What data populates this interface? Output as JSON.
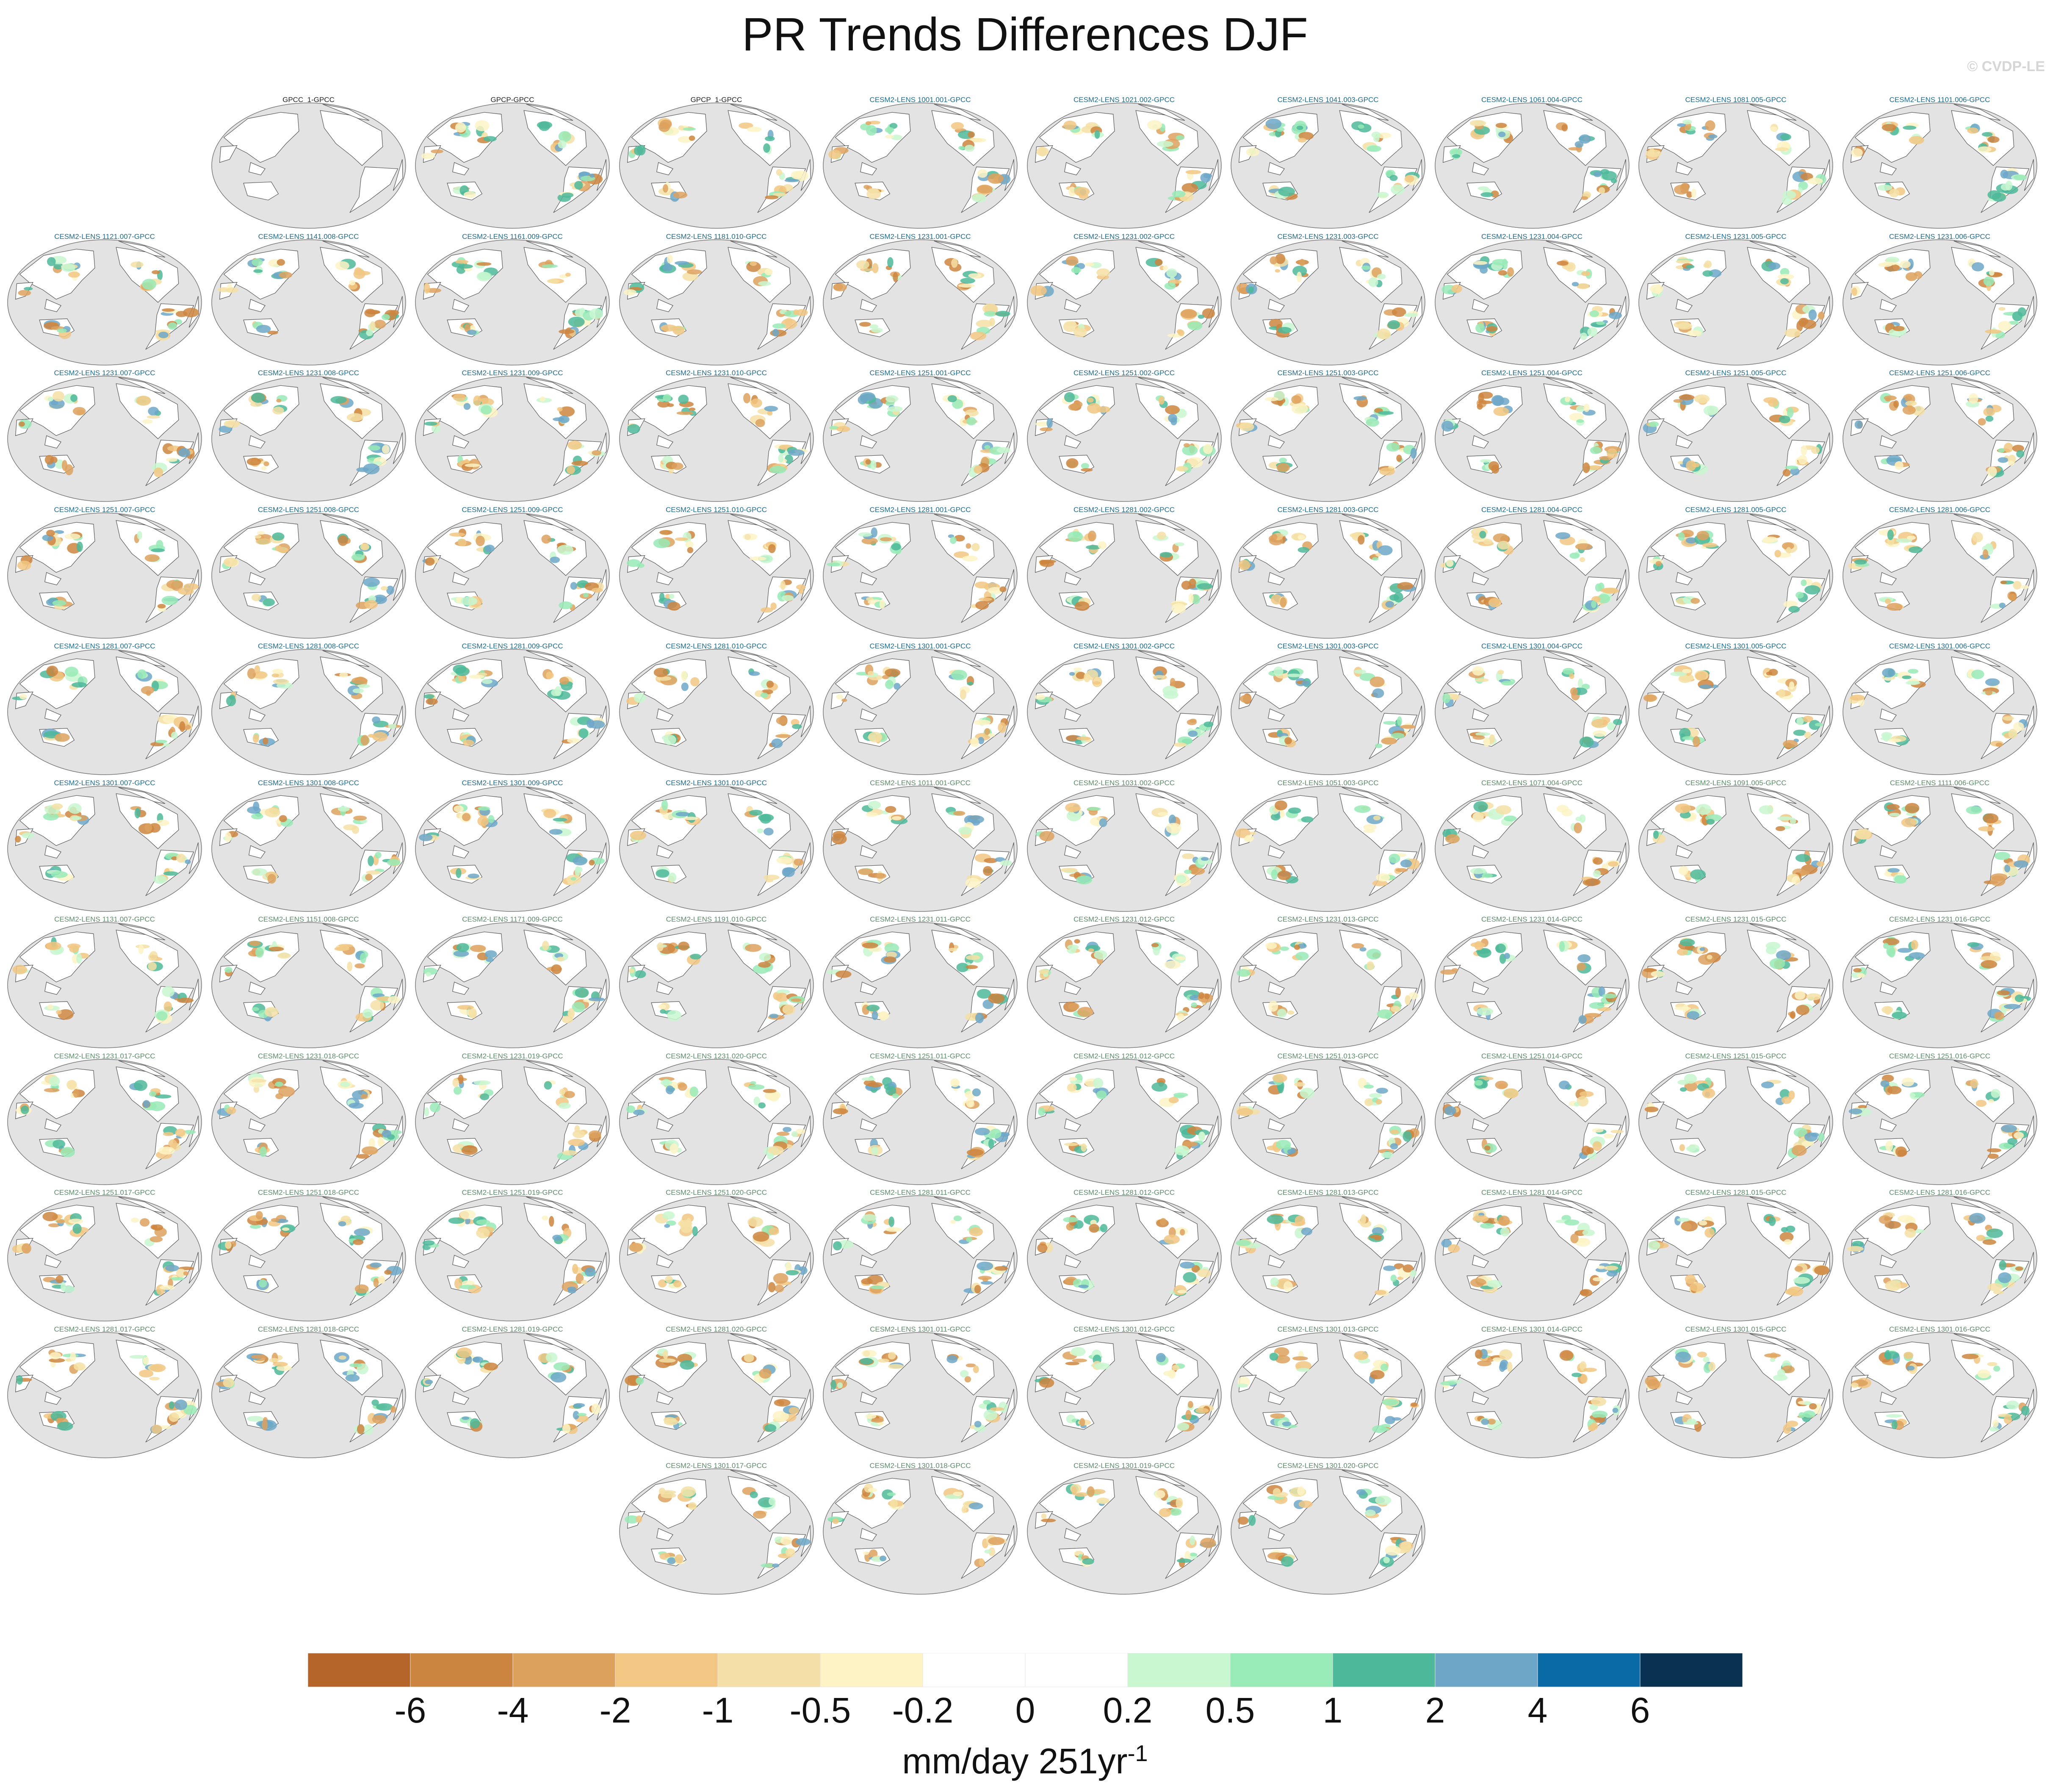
{
  "title": "PR Trends Differences DJF",
  "watermark": "© CVDP-LE",
  "label_colors": {
    "observations": "#222222",
    "group1": "#1f6b8c",
    "group2": "#5c8c6a"
  },
  "panels": [
    {
      "label": "GPCC_1-GPCC",
      "group": "observations"
    },
    {
      "label": "GPCP-GPCC",
      "group": "observations"
    },
    {
      "label": "GPCP_1-GPCC",
      "group": "observations"
    },
    {
      "label": "CESM2-LENS 1001.001-GPCC",
      "group": "group1"
    },
    {
      "label": "CESM2-LENS 1021.002-GPCC",
      "group": "group1"
    },
    {
      "label": "CESM2-LENS 1041.003-GPCC",
      "group": "group1"
    },
    {
      "label": "CESM2-LENS 1061.004-GPCC",
      "group": "group1"
    },
    {
      "label": "CESM2-LENS 1081.005-GPCC",
      "group": "group1"
    },
    {
      "label": "CESM2-LENS 1101.006-GPCC",
      "group": "group1"
    },
    {
      "label": "CESM2-LENS 1121.007-GPCC",
      "group": "group1"
    },
    {
      "label": "CESM2-LENS 1141.008-GPCC",
      "group": "group1"
    },
    {
      "label": "CESM2-LENS 1161.009-GPCC",
      "group": "group1"
    },
    {
      "label": "CESM2-LENS 1181.010-GPCC",
      "group": "group1"
    },
    {
      "label": "CESM2-LENS 1231.001-GPCC",
      "group": "group1"
    },
    {
      "label": "CESM2-LENS 1231.002-GPCC",
      "group": "group1"
    },
    {
      "label": "CESM2-LENS 1231.003-GPCC",
      "group": "group1"
    },
    {
      "label": "CESM2-LENS 1231.004-GPCC",
      "group": "group1"
    },
    {
      "label": "CESM2-LENS 1231.005-GPCC",
      "group": "group1"
    },
    {
      "label": "CESM2-LENS 1231.006-GPCC",
      "group": "group1"
    },
    {
      "label": "CESM2-LENS 1231.007-GPCC",
      "group": "group1"
    },
    {
      "label": "CESM2-LENS 1231.008-GPCC",
      "group": "group1"
    },
    {
      "label": "CESM2-LENS 1231.009-GPCC",
      "group": "group1"
    },
    {
      "label": "CESM2-LENS 1231.010-GPCC",
      "group": "group1"
    },
    {
      "label": "CESM2-LENS 1251.001-GPCC",
      "group": "group1"
    },
    {
      "label": "CESM2-LENS 1251.002-GPCC",
      "group": "group1"
    },
    {
      "label": "CESM2-LENS 1251.003-GPCC",
      "group": "group1"
    },
    {
      "label": "CESM2-LENS 1251.004-GPCC",
      "group": "group1"
    },
    {
      "label": "CESM2-LENS 1251.005-GPCC",
      "group": "group1"
    },
    {
      "label": "CESM2-LENS 1251.006-GPCC",
      "group": "group1"
    },
    {
      "label": "CESM2-LENS 1251.007-GPCC",
      "group": "group1"
    },
    {
      "label": "CESM2-LENS 1251.008-GPCC",
      "group": "group1"
    },
    {
      "label": "CESM2-LENS 1251.009-GPCC",
      "group": "group1"
    },
    {
      "label": "CESM2-LENS 1251.010-GPCC",
      "group": "group1"
    },
    {
      "label": "CESM2-LENS 1281.001-GPCC",
      "group": "group1"
    },
    {
      "label": "CESM2-LENS 1281.002-GPCC",
      "group": "group1"
    },
    {
      "label": "CESM2-LENS 1281.003-GPCC",
      "group": "group1"
    },
    {
      "label": "CESM2-LENS 1281.004-GPCC",
      "group": "group1"
    },
    {
      "label": "CESM2-LENS 1281.005-GPCC",
      "group": "group1"
    },
    {
      "label": "CESM2-LENS 1281.006-GPCC",
      "group": "group1"
    },
    {
      "label": "CESM2-LENS 1281.007-GPCC",
      "group": "group1"
    },
    {
      "label": "CESM2-LENS 1281.008-GPCC",
      "group": "group1"
    },
    {
      "label": "CESM2-LENS 1281.009-GPCC",
      "group": "group1"
    },
    {
      "label": "CESM2-LENS 1281.010-GPCC",
      "group": "group1"
    },
    {
      "label": "CESM2-LENS 1301.001-GPCC",
      "group": "group1"
    },
    {
      "label": "CESM2-LENS 1301.002-GPCC",
      "group": "group1"
    },
    {
      "label": "CESM2-LENS 1301.003-GPCC",
      "group": "group1"
    },
    {
      "label": "CESM2-LENS 1301.004-GPCC",
      "group": "group1"
    },
    {
      "label": "CESM2-LENS 1301.005-GPCC",
      "group": "group1"
    },
    {
      "label": "CESM2-LENS 1301.006-GPCC",
      "group": "group1"
    },
    {
      "label": "CESM2-LENS 1301.007-GPCC",
      "group": "group1"
    },
    {
      "label": "CESM2-LENS 1301.008-GPCC",
      "group": "group1"
    },
    {
      "label": "CESM2-LENS 1301.009-GPCC",
      "group": "group1"
    },
    {
      "label": "CESM2-LENS 1301.010-GPCC",
      "group": "group1"
    },
    {
      "label": "CESM2-LENS 1011.001-GPCC",
      "group": "group2"
    },
    {
      "label": "CESM2-LENS 1031.002-GPCC",
      "group": "group2"
    },
    {
      "label": "CESM2-LENS 1051.003-GPCC",
      "group": "group2"
    },
    {
      "label": "CESM2-LENS 1071.004-GPCC",
      "group": "group2"
    },
    {
      "label": "CESM2-LENS 1091.005-GPCC",
      "group": "group2"
    },
    {
      "label": "CESM2-LENS 1111.006-GPCC",
      "group": "group2"
    },
    {
      "label": "CESM2-LENS 1131.007-GPCC",
      "group": "group2"
    },
    {
      "label": "CESM2-LENS 1151.008-GPCC",
      "group": "group2"
    },
    {
      "label": "CESM2-LENS 1171.009-GPCC",
      "group": "group2"
    },
    {
      "label": "CESM2-LENS 1191.010-GPCC",
      "group": "group2"
    },
    {
      "label": "CESM2-LENS 1231.011-GPCC",
      "group": "group2"
    },
    {
      "label": "CESM2-LENS 1231.012-GPCC",
      "group": "group2"
    },
    {
      "label": "CESM2-LENS 1231.013-GPCC",
      "group": "group2"
    },
    {
      "label": "CESM2-LENS 1231.014-GPCC",
      "group": "group2"
    },
    {
      "label": "CESM2-LENS 1231.015-GPCC",
      "group": "group2"
    },
    {
      "label": "CESM2-LENS 1231.016-GPCC",
      "group": "group2"
    },
    {
      "label": "CESM2-LENS 1231.017-GPCC",
      "group": "group2"
    },
    {
      "label": "CESM2-LENS 1231.018-GPCC",
      "group": "group2"
    },
    {
      "label": "CESM2-LENS 1231.019-GPCC",
      "group": "group2"
    },
    {
      "label": "CESM2-LENS 1231.020-GPCC",
      "group": "group2"
    },
    {
      "label": "CESM2-LENS 1251.011-GPCC",
      "group": "group2"
    },
    {
      "label": "CESM2-LENS 1251.012-GPCC",
      "group": "group2"
    },
    {
      "label": "CESM2-LENS 1251.013-GPCC",
      "group": "group2"
    },
    {
      "label": "CESM2-LENS 1251.014-GPCC",
      "group": "group2"
    },
    {
      "label": "CESM2-LENS 1251.015-GPCC",
      "group": "group2"
    },
    {
      "label": "CESM2-LENS 1251.016-GPCC",
      "group": "group2"
    },
    {
      "label": "CESM2-LENS 1251.017-GPCC",
      "group": "group2"
    },
    {
      "label": "CESM2-LENS 1251.018-GPCC",
      "group": "group2"
    },
    {
      "label": "CESM2-LENS 1251.019-GPCC",
      "group": "group2"
    },
    {
      "label": "CESM2-LENS 1251.020-GPCC",
      "group": "group2"
    },
    {
      "label": "CESM2-LENS 1281.011-GPCC",
      "group": "group2"
    },
    {
      "label": "CESM2-LENS 1281.012-GPCC",
      "group": "group2"
    },
    {
      "label": "CESM2-LENS 1281.013-GPCC",
      "group": "group2"
    },
    {
      "label": "CESM2-LENS 1281.014-GPCC",
      "group": "group2"
    },
    {
      "label": "CESM2-LENS 1281.015-GPCC",
      "group": "group2"
    },
    {
      "label": "CESM2-LENS 1281.016-GPCC",
      "group": "group2"
    },
    {
      "label": "CESM2-LENS 1281.017-GPCC",
      "group": "group2"
    },
    {
      "label": "CESM2-LENS 1281.018-GPCC",
      "group": "group2"
    },
    {
      "label": "CESM2-LENS 1281.019-GPCC",
      "group": "group2"
    },
    {
      "label": "CESM2-LENS 1281.020-GPCC",
      "group": "group2"
    },
    {
      "label": "CESM2-LENS 1301.011-GPCC",
      "group": "group2"
    },
    {
      "label": "CESM2-LENS 1301.012-GPCC",
      "group": "group2"
    },
    {
      "label": "CESM2-LENS 1301.013-GPCC",
      "group": "group2"
    },
    {
      "label": "CESM2-LENS 1301.014-GPCC",
      "group": "group2"
    },
    {
      "label": "CESM2-LENS 1301.015-GPCC",
      "group": "group2"
    },
    {
      "label": "CESM2-LENS 1301.016-GPCC",
      "group": "group2"
    },
    {
      "label": "CESM2-LENS 1301.017-GPCC",
      "group": "group2"
    },
    {
      "label": "CESM2-LENS 1301.018-GPCC",
      "group": "group2"
    },
    {
      "label": "CESM2-LENS 1301.019-GPCC",
      "group": "group2"
    },
    {
      "label": "CESM2-LENS 1301.020-GPCC",
      "group": "group2"
    }
  ],
  "colorbar": {
    "colors": [
      "#b5652a",
      "#cc8540",
      "#dda15e",
      "#f1c783",
      "#f4e0a6",
      "#fdf3c4",
      "#ffffff",
      "#ffffff",
      "#c8f7d0",
      "#98eab6",
      "#4db89a",
      "#6da7c8",
      "#0a6aa5",
      "#08324f"
    ],
    "tick_labels": [
      "-6",
      "-4",
      "-2",
      "-1",
      "-0.5",
      "-0.2",
      "0",
      "0.2",
      "0.5",
      "1",
      "2",
      "4",
      "6"
    ],
    "units_main": "mm/day 251yr",
    "units_sup": "-1"
  }
}
